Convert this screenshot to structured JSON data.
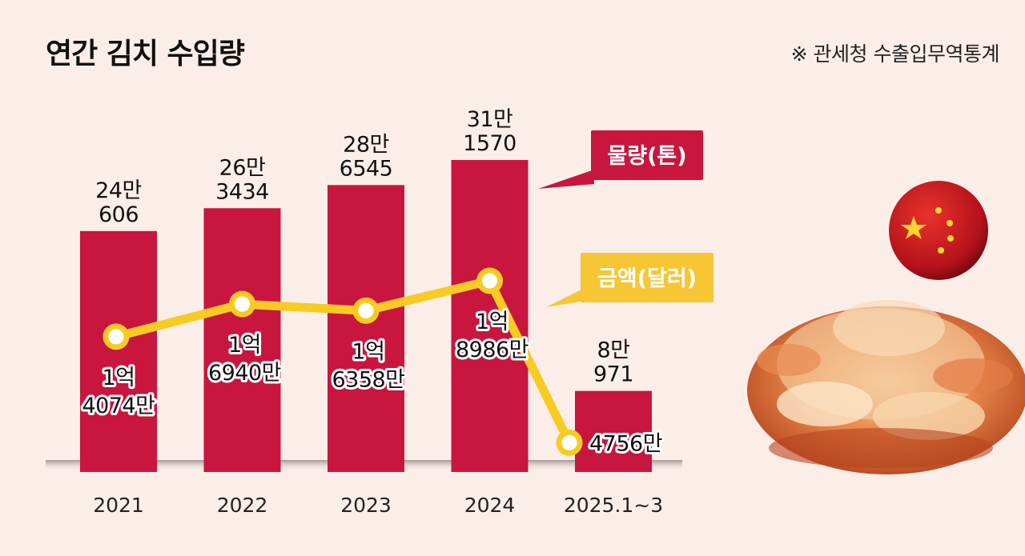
{
  "title": "연간 김치 수입량",
  "source": "※ 관세청 수출입무역통계",
  "legend": {
    "volume": "물량(톤)",
    "amount": "금액(달러)"
  },
  "colors": {
    "bar": "#c8163e",
    "line": "#f7cb24",
    "background": "#fbeee9"
  },
  "chart_data": {
    "type": "bar",
    "categories": [
      "2021",
      "2022",
      "2023",
      "2024",
      "2025.1~3"
    ],
    "series": [
      {
        "name": "물량(톤)",
        "type": "bar",
        "values": [
          240606,
          263434,
          286545,
          311570,
          80971
        ],
        "labels": [
          [
            "24만",
            "606"
          ],
          [
            "26만",
            "3434"
          ],
          [
            "28만",
            "6545"
          ],
          [
            "31만",
            "1570"
          ],
          [
            "8만",
            "971"
          ]
        ]
      },
      {
        "name": "금액(달러)",
        "type": "line",
        "values": [
          140740000,
          169400000,
          163580000,
          189860000,
          47560000
        ],
        "labels": [
          [
            "1억",
            "4074만"
          ],
          [
            "1억",
            "6940만"
          ],
          [
            "1억",
            "6358만"
          ],
          [
            "1억",
            "8986만"
          ],
          [
            "4756만"
          ]
        ]
      }
    ]
  }
}
